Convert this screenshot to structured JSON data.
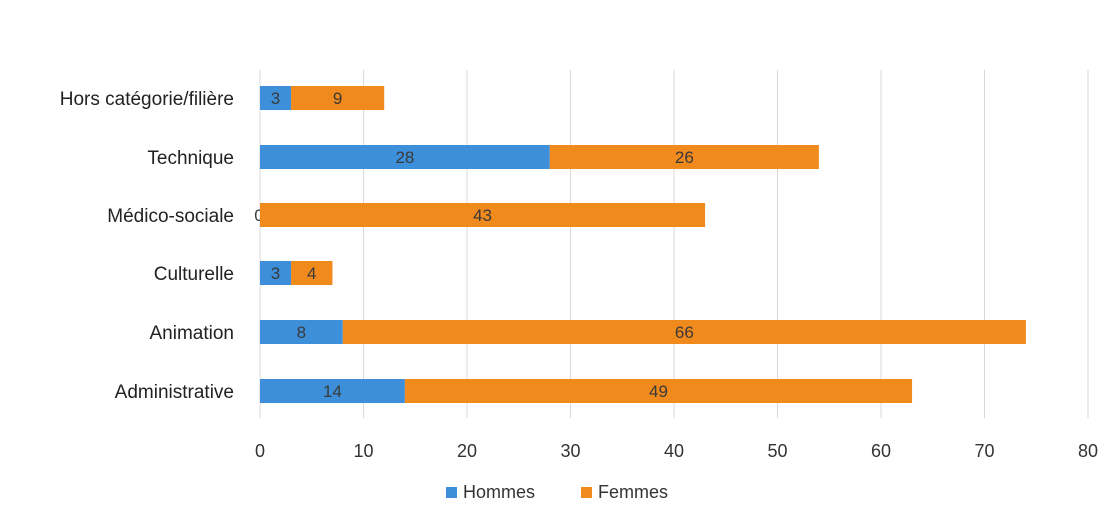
{
  "chart_data": {
    "type": "bar",
    "orientation": "horizontal",
    "stacked": true,
    "categories": [
      "Administrative",
      "Animation",
      "Culturelle",
      "Médico-sociale",
      "Technique",
      "Hors catégorie/filière"
    ],
    "series": [
      {
        "name": "Hommes",
        "values": [
          14,
          8,
          3,
          0,
          28,
          3
        ],
        "color": "#3d8fd9"
      },
      {
        "name": "Femmes",
        "values": [
          49,
          66,
          4,
          43,
          26,
          9
        ],
        "color": "#f08a1c"
      }
    ],
    "xlim": [
      0,
      80
    ],
    "xticks": [
      0,
      10,
      20,
      30,
      40,
      50,
      60,
      70,
      80
    ],
    "grid": true,
    "legend_position": "bottom",
    "title": "",
    "xlabel": "",
    "ylabel": ""
  }
}
